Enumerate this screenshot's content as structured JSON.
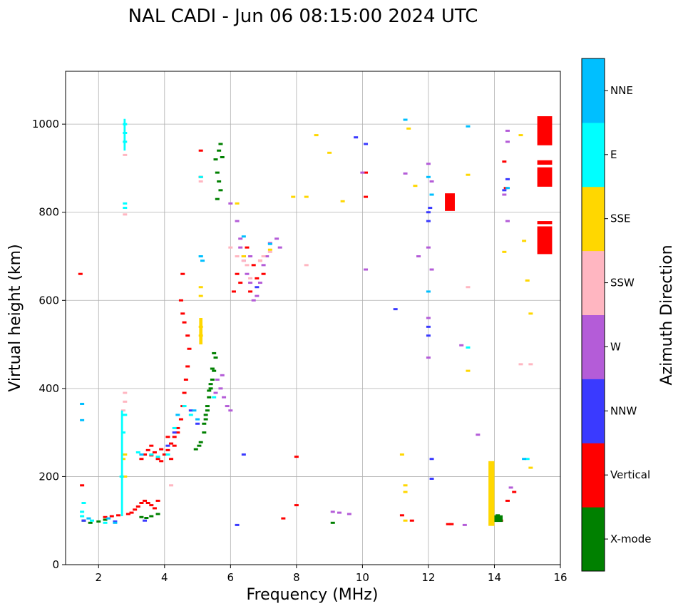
{
  "chart_data": {
    "type": "scatter",
    "title": "NAL CADI - Jun 06 08:15:00 2024 UTC",
    "xlabel": "Frequency (MHz)",
    "ylabel": "Virtual height (km)",
    "xlim": [
      1,
      16
    ],
    "ylim": [
      0,
      1120
    ],
    "xticks": [
      2,
      4,
      6,
      8,
      10,
      12,
      14,
      16
    ],
    "yticks": [
      0,
      200,
      400,
      600,
      800,
      1000
    ],
    "grid": true,
    "colorbar": {
      "title": "Azimuth Direction",
      "categories": [
        {
          "name": "X-mode",
          "color": "#008000"
        },
        {
          "name": "Vertical",
          "color": "#ff0000"
        },
        {
          "name": "NNW",
          "color": "#3a3aff"
        },
        {
          "name": "W",
          "color": "#b45cd8"
        },
        {
          "name": "SSW",
          "color": "#ffb6c1"
        },
        {
          "name": "SSE",
          "color": "#ffd700"
        },
        {
          "name": "E",
          "color": "#00ffff"
        },
        {
          "name": "NNE",
          "color": "#00bfff"
        }
      ]
    },
    "series": [
      {
        "name": "X-mode",
        "points": [
          [
            1.55,
            100
          ],
          [
            1.75,
            95
          ],
          [
            2.0,
            98
          ],
          [
            2.2,
            102
          ],
          [
            3.3,
            108
          ],
          [
            3.45,
            106
          ],
          [
            3.6,
            110
          ],
          [
            3.8,
            115
          ],
          [
            4.95,
            262
          ],
          [
            5.05,
            270
          ],
          [
            5.1,
            278
          ],
          [
            5.2,
            300
          ],
          [
            5.25,
            330
          ],
          [
            5.3,
            350
          ],
          [
            5.35,
            380
          ],
          [
            5.4,
            400
          ],
          [
            5.45,
            420
          ],
          [
            5.5,
            440
          ],
          [
            5.55,
            470
          ],
          [
            5.2,
            320
          ],
          [
            5.3,
            360
          ],
          [
            5.4,
            410
          ],
          [
            5.6,
            830
          ],
          [
            5.7,
            850
          ],
          [
            5.65,
            870
          ],
          [
            5.6,
            890
          ],
          [
            5.55,
            920
          ],
          [
            5.65,
            940
          ],
          [
            5.7,
            955
          ],
          [
            5.75,
            925
          ],
          [
            5.5,
            480
          ],
          [
            5.45,
            445
          ],
          [
            5.35,
            395
          ],
          [
            5.25,
            340
          ],
          [
            9.1,
            95
          ],
          [
            14.15,
            105
          ],
          [
            14.1,
            112
          ]
        ]
      },
      {
        "name": "Vertical",
        "points": [
          [
            1.45,
            660
          ],
          [
            1.5,
            180
          ],
          [
            2.2,
            108
          ],
          [
            2.4,
            110
          ],
          [
            2.6,
            112
          ],
          [
            2.9,
            115
          ],
          [
            3.0,
            118
          ],
          [
            3.1,
            125
          ],
          [
            3.2,
            132
          ],
          [
            3.3,
            140
          ],
          [
            3.4,
            145
          ],
          [
            3.5,
            140
          ],
          [
            3.6,
            135
          ],
          [
            3.7,
            128
          ],
          [
            3.8,
            145
          ],
          [
            3.3,
            240
          ],
          [
            3.4,
            250
          ],
          [
            3.5,
            260
          ],
          [
            3.6,
            270
          ],
          [
            3.7,
            255
          ],
          [
            3.8,
            240
          ],
          [
            3.9,
            235
          ],
          [
            4.0,
            250
          ],
          [
            4.1,
            260
          ],
          [
            4.2,
            275
          ],
          [
            4.3,
            290
          ],
          [
            4.4,
            310
          ],
          [
            4.5,
            330
          ],
          [
            4.55,
            360
          ],
          [
            4.6,
            390
          ],
          [
            4.65,
            420
          ],
          [
            4.7,
            450
          ],
          [
            4.75,
            490
          ],
          [
            4.7,
            520
          ],
          [
            4.6,
            550
          ],
          [
            4.55,
            570
          ],
          [
            4.5,
            600
          ],
          [
            4.55,
            660
          ],
          [
            4.1,
            290
          ],
          [
            4.3,
            270
          ],
          [
            3.9,
            262
          ],
          [
            3.6,
            248
          ],
          [
            4.4,
            300
          ],
          [
            4.2,
            240
          ],
          [
            5.1,
            940
          ],
          [
            5.1,
            880
          ],
          [
            6.1,
            620
          ],
          [
            6.3,
            640
          ],
          [
            6.6,
            620
          ],
          [
            6.8,
            650
          ],
          [
            6.4,
            700
          ],
          [
            6.2,
            660
          ],
          [
            6.5,
            720
          ],
          [
            6.7,
            680
          ],
          [
            6.9,
            690
          ],
          [
            7.0,
            660
          ],
          [
            7.6,
            105
          ],
          [
            8.0,
            135
          ],
          [
            8.0,
            245
          ],
          [
            10.1,
            835
          ],
          [
            10.1,
            890
          ],
          [
            11.2,
            112
          ],
          [
            11.5,
            100
          ],
          [
            12.6,
            92
          ],
          [
            12.7,
            92
          ],
          [
            14.3,
            915
          ],
          [
            14.35,
            855
          ],
          [
            14.4,
            145
          ],
          [
            14.6,
            165
          ],
          [
            14.2,
            100
          ]
        ]
      },
      {
        "name": "NNW",
        "points": [
          [
            1.55,
            100
          ],
          [
            2.5,
            98
          ],
          [
            3.4,
            100
          ],
          [
            4.1,
            270
          ],
          [
            4.3,
            300
          ],
          [
            4.8,
            350
          ],
          [
            5.0,
            320
          ],
          [
            6.2,
            90
          ],
          [
            6.4,
            250
          ],
          [
            6.8,
            630
          ],
          [
            9.8,
            970
          ],
          [
            10.1,
            955
          ],
          [
            11.0,
            580
          ],
          [
            12.0,
            520
          ],
          [
            12.0,
            540
          ],
          [
            12.0,
            780
          ],
          [
            12.0,
            800
          ],
          [
            12.05,
            810
          ],
          [
            12.1,
            240
          ],
          [
            12.1,
            195
          ],
          [
            14.4,
            875
          ],
          [
            14.3,
            850
          ]
        ]
      },
      {
        "name": "W",
        "points": [
          [
            6.0,
            820
          ],
          [
            6.2,
            780
          ],
          [
            6.3,
            720
          ],
          [
            6.4,
            690
          ],
          [
            6.5,
            660
          ],
          [
            6.6,
            640
          ],
          [
            6.7,
            600
          ],
          [
            6.8,
            610
          ],
          [
            6.9,
            640
          ],
          [
            7.0,
            680
          ],
          [
            7.1,
            700
          ],
          [
            7.2,
            730
          ],
          [
            7.4,
            740
          ],
          [
            7.5,
            720
          ],
          [
            6.3,
            740
          ],
          [
            6.6,
            700
          ],
          [
            5.7,
            400
          ],
          [
            5.8,
            380
          ],
          [
            5.9,
            360
          ],
          [
            6.0,
            350
          ],
          [
            5.6,
            420
          ],
          [
            5.55,
            390
          ],
          [
            5.75,
            430
          ],
          [
            9.1,
            120
          ],
          [
            9.3,
            118
          ],
          [
            9.6,
            115
          ],
          [
            10.0,
            890
          ],
          [
            10.1,
            670
          ],
          [
            11.3,
            888
          ],
          [
            11.7,
            700
          ],
          [
            12.0,
            470
          ],
          [
            12.0,
            560
          ],
          [
            12.0,
            720
          ],
          [
            12.0,
            910
          ],
          [
            12.1,
            670
          ],
          [
            12.1,
            870
          ],
          [
            13.0,
            498
          ],
          [
            13.5,
            295
          ],
          [
            14.4,
            985
          ],
          [
            14.4,
            960
          ],
          [
            14.4,
            780
          ],
          [
            14.5,
            175
          ],
          [
            14.3,
            840
          ],
          [
            13.1,
            90
          ]
        ]
      },
      {
        "name": "SSW",
        "points": [
          [
            2.8,
            370
          ],
          [
            2.8,
            390
          ],
          [
            2.75,
            350
          ],
          [
            2.8,
            930
          ],
          [
            2.8,
            795
          ],
          [
            6.0,
            720
          ],
          [
            6.2,
            700
          ],
          [
            6.4,
            690
          ],
          [
            6.5,
            680
          ],
          [
            6.6,
            650
          ],
          [
            6.9,
            690
          ],
          [
            7.0,
            700
          ],
          [
            7.2,
            710
          ],
          [
            8.3,
            680
          ],
          [
            13.2,
            630
          ],
          [
            14.8,
            455
          ],
          [
            15.1,
            455
          ],
          [
            5.1,
            870
          ],
          [
            4.2,
            180
          ]
        ]
      },
      {
        "name": "SSE",
        "points": [
          [
            2.8,
            200
          ],
          [
            2.8,
            250
          ],
          [
            2.75,
            240
          ],
          [
            5.1,
            630
          ],
          [
            5.1,
            610
          ],
          [
            5.1,
            540
          ],
          [
            5.1,
            520
          ],
          [
            6.2,
            820
          ],
          [
            6.4,
            700
          ],
          [
            7.2,
            715
          ],
          [
            7.9,
            835
          ],
          [
            8.3,
            835
          ],
          [
            8.6,
            975
          ],
          [
            9.0,
            935
          ],
          [
            9.4,
            825
          ],
          [
            11.2,
            250
          ],
          [
            11.3,
            180
          ],
          [
            11.3,
            165
          ],
          [
            11.3,
            100
          ],
          [
            11.4,
            990
          ],
          [
            11.6,
            860
          ],
          [
            13.2,
            885
          ],
          [
            13.2,
            440
          ],
          [
            14.3,
            710
          ],
          [
            14.8,
            975
          ],
          [
            14.9,
            735
          ],
          [
            15.0,
            645
          ],
          [
            15.1,
            570
          ],
          [
            15.1,
            220
          ]
        ]
      },
      {
        "name": "E",
        "points": [
          [
            1.5,
            120
          ],
          [
            1.55,
            140
          ],
          [
            1.5,
            110
          ],
          [
            1.8,
            100
          ],
          [
            2.2,
            95
          ],
          [
            2.7,
            200
          ],
          [
            2.75,
            300
          ],
          [
            2.8,
            340
          ],
          [
            2.8,
            1000
          ],
          [
            2.8,
            980
          ],
          [
            2.8,
            960
          ],
          [
            2.8,
            820
          ],
          [
            2.8,
            810
          ],
          [
            3.2,
            255
          ],
          [
            3.6,
            250
          ],
          [
            3.8,
            245
          ],
          [
            4.1,
            250
          ],
          [
            4.3,
            310
          ],
          [
            4.6,
            360
          ],
          [
            4.8,
            340
          ],
          [
            5.1,
            700
          ],
          [
            5.1,
            880
          ],
          [
            5.5,
            380
          ],
          [
            12.1,
            840
          ],
          [
            13.2,
            493
          ],
          [
            15.0,
            240
          ]
        ]
      },
      {
        "name": "NNE",
        "points": [
          [
            1.5,
            365
          ],
          [
            1.5,
            328
          ],
          [
            1.7,
            105
          ],
          [
            2.3,
            105
          ],
          [
            2.5,
            95
          ],
          [
            3.3,
            250
          ],
          [
            4.4,
            340
          ],
          [
            4.9,
            350
          ],
          [
            5.0,
            330
          ],
          [
            5.1,
            700
          ],
          [
            5.15,
            690
          ],
          [
            6.4,
            745
          ],
          [
            7.2,
            728
          ],
          [
            11.3,
            1010
          ],
          [
            12.0,
            880
          ],
          [
            12.0,
            620
          ],
          [
            12.1,
            840
          ],
          [
            13.2,
            995
          ],
          [
            14.4,
            855
          ],
          [
            14.9,
            240
          ]
        ]
      }
    ],
    "bars": [
      {
        "series": "Vertical",
        "x": [
          15.3,
          15.75
        ],
        "y": [
          952,
          1018
        ]
      },
      {
        "series": "Vertical",
        "x": [
          15.3,
          15.75
        ],
        "y": [
          858,
          902
        ]
      },
      {
        "series": "Vertical",
        "x": [
          15.3,
          15.75
        ],
        "y": [
          908,
          918
        ]
      },
      {
        "series": "Vertical",
        "x": [
          15.3,
          15.75
        ],
        "y": [
          705,
          768
        ]
      },
      {
        "series": "Vertical",
        "x": [
          15.3,
          15.75
        ],
        "y": [
          773,
          780
        ]
      },
      {
        "series": "Vertical",
        "x": [
          12.5,
          12.8
        ],
        "y": [
          803,
          843
        ]
      },
      {
        "series": "SSE",
        "x": [
          13.82,
          14.0
        ],
        "y": [
          88,
          235
        ]
      },
      {
        "series": "E",
        "x": [
          2.68,
          2.74
        ],
        "y": [
          110,
          350
        ]
      },
      {
        "series": "SSE",
        "x": [
          5.05,
          5.15
        ],
        "y": [
          500,
          560
        ]
      },
      {
        "series": "E",
        "x": [
          2.76,
          2.82
        ],
        "y": [
          940,
          1012
        ]
      },
      {
        "series": "X-mode",
        "x": [
          14.0,
          14.25
        ],
        "y": [
          97,
          112
        ]
      }
    ]
  }
}
